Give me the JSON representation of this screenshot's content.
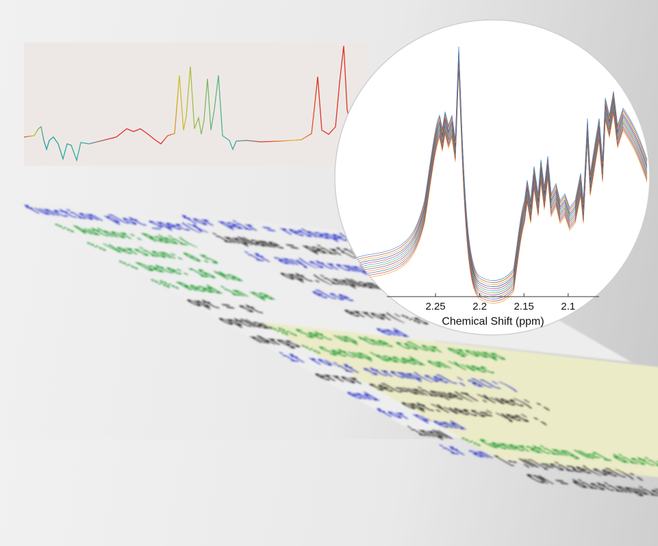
{
  "inset": {
    "xlabel": "Chemical Shift (ppm)",
    "xticks": [
      2.25,
      2.2,
      2.15,
      2.1
    ],
    "xlim": [
      2.305,
      2.065
    ]
  },
  "code": {
    "left": [
      "function plot_spec(X,ppm,T,sel,varargin)",
      "% Author: Rabi(",
      "% Version: 0.5",
      "% Date: 16 Ma",
      "%% Read in pa",
      "opt = st",
      "optNames",
      "nArgs = ",
      "if round(",
      "error",
      "end",
      "for pair",
      "inpN",
      "if an"
    ],
    "middle": [
      "for pair = reshape(varargin",
      "inpName = pair{1};",
      "if any(strcmp(inpName",
      "opt.(inpName) =",
      "else",
      "error('%s not",
      "end",
      "end"
    ],
    "yellow": [
      "%% Set up the color groups",
      "% Setup based on Yvec",
      "if strcmp(sel,'all')",
      "sel=unique(T.Yvec)';",
      "opt.Yvecs='yes';",
      "end",
      "% Generating N=1 distinguishable colors",
      "[~,N]=size(sel);",
      "CM = distinguishable_colors(N);"
    ]
  }
}
